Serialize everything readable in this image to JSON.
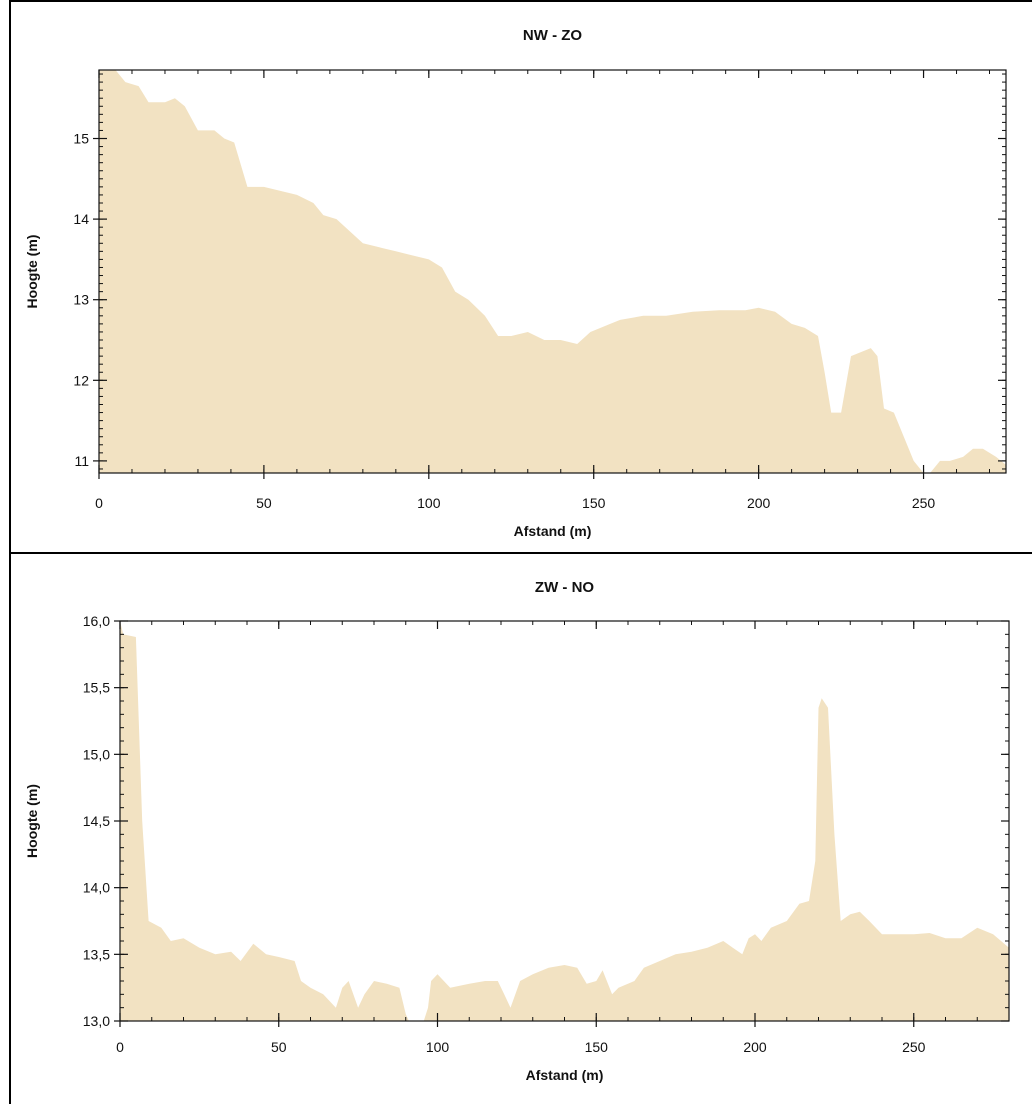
{
  "chart_data": [
    {
      "type": "area",
      "title": "NW - ZO",
      "xlabel": "Afstand (m)",
      "ylabel": "Hoogte (m)",
      "xlim": [
        0,
        275
      ],
      "ylim": [
        10.85,
        15.85
      ],
      "xticks": [
        0,
        50,
        100,
        150,
        200,
        250
      ],
      "yticks": [
        11,
        12,
        13,
        14,
        15
      ],
      "xtick_labels": [
        "0",
        "50",
        "100",
        "150",
        "200",
        "250"
      ],
      "ytick_labels": [
        "11",
        "12",
        "13",
        "14",
        "15"
      ],
      "fill_color": "#f2e2c2",
      "grid": false,
      "series": [
        {
          "x": [
            0,
            5,
            8,
            12,
            15,
            20,
            23,
            26,
            30,
            35,
            38,
            41,
            45,
            50,
            55,
            60,
            65,
            68,
            72,
            80,
            85,
            90,
            95,
            100,
            104,
            108,
            112,
            117,
            121,
            125,
            130,
            135,
            140,
            145,
            149,
            155,
            158,
            165,
            172,
            180,
            188,
            196,
            200,
            205,
            210,
            214,
            218,
            220,
            222,
            225,
            228,
            231,
            234,
            236,
            238,
            241,
            244,
            247,
            250,
            252,
            255,
            258,
            262,
            265,
            268,
            272,
            275
          ],
          "y": [
            15.85,
            15.85,
            15.7,
            15.65,
            15.45,
            15.45,
            15.5,
            15.4,
            15.1,
            15.1,
            15.0,
            14.95,
            14.4,
            14.4,
            14.35,
            14.3,
            14.2,
            14.05,
            14.0,
            13.7,
            13.65,
            13.6,
            13.55,
            13.5,
            13.4,
            13.1,
            13.0,
            12.8,
            12.55,
            12.55,
            12.6,
            12.5,
            12.5,
            12.45,
            12.6,
            12.7,
            12.75,
            12.8,
            12.8,
            12.85,
            12.87,
            12.87,
            12.9,
            12.85,
            12.7,
            12.65,
            12.55,
            12.1,
            11.6,
            11.6,
            12.3,
            12.35,
            12.4,
            12.3,
            11.65,
            11.6,
            11.3,
            11.0,
            10.85,
            10.85,
            11.0,
            11.0,
            11.05,
            11.15,
            11.15,
            11.05,
            10.95
          ]
        }
      ]
    },
    {
      "type": "area",
      "title": "ZW - NO",
      "xlabel": "Afstand (m)",
      "ylabel": "Hoogte (m)",
      "xlim": [
        0,
        280
      ],
      "ylim": [
        13.0,
        16.0
      ],
      "xticks": [
        0,
        50,
        100,
        150,
        200,
        250
      ],
      "yticks": [
        13.0,
        13.5,
        14.0,
        14.5,
        15.0,
        15.5,
        16.0
      ],
      "xtick_labels": [
        "0",
        "50",
        "100",
        "150",
        "200",
        "250"
      ],
      "ytick_labels": [
        "13,0",
        "13,5",
        "14,0",
        "14,5",
        "15,0",
        "15,5",
        "16,0"
      ],
      "fill_color": "#f2e2c2",
      "grid": false,
      "series": [
        {
          "x": [
            0,
            1,
            5,
            7,
            9,
            13,
            16,
            20,
            25,
            30,
            35,
            38,
            42,
            46,
            50,
            55,
            57,
            60,
            64,
            68,
            70,
            72,
            75,
            77,
            80,
            84,
            88,
            90,
            92,
            95,
            97,
            98,
            100,
            104,
            110,
            115,
            119,
            121,
            123,
            126,
            130,
            135,
            140,
            144,
            147,
            150,
            152,
            155,
            157,
            162,
            165,
            170,
            175,
            180,
            185,
            190,
            193,
            196,
            198,
            200,
            202,
            205,
            210,
            214,
            217,
            219,
            220,
            221,
            223,
            225,
            227,
            230,
            233,
            236,
            240,
            245,
            250,
            255,
            260,
            265,
            270,
            275,
            280
          ],
          "y": [
            16.0,
            15.9,
            15.88,
            14.5,
            13.75,
            13.7,
            13.6,
            13.62,
            13.55,
            13.5,
            13.52,
            13.45,
            13.58,
            13.5,
            13.48,
            13.45,
            13.3,
            13.25,
            13.2,
            13.1,
            13.25,
            13.3,
            13.1,
            13.2,
            13.3,
            13.28,
            13.25,
            13.05,
            12.95,
            12.95,
            13.1,
            13.3,
            13.35,
            13.25,
            13.28,
            13.3,
            13.3,
            13.2,
            13.1,
            13.3,
            13.35,
            13.4,
            13.42,
            13.4,
            13.28,
            13.3,
            13.38,
            13.2,
            13.25,
            13.3,
            13.4,
            13.45,
            13.5,
            13.52,
            13.55,
            13.6,
            13.55,
            13.5,
            13.62,
            13.65,
            13.6,
            13.7,
            13.75,
            13.88,
            13.9,
            14.2,
            15.35,
            15.42,
            15.35,
            14.4,
            13.75,
            13.8,
            13.82,
            13.75,
            13.65,
            13.65,
            13.65,
            13.66,
            13.62,
            13.62,
            13.7,
            13.65,
            13.55
          ]
        }
      ]
    }
  ]
}
